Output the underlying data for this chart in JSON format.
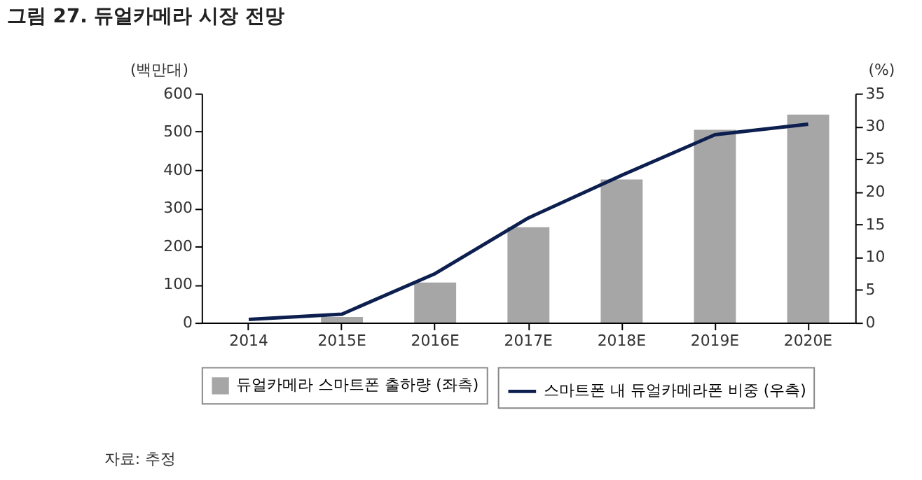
{
  "chart_data": {
    "type": "bar",
    "title": "그림 27. 듀얼카메라 시장 전망",
    "categories": [
      "2014",
      "2015E",
      "2016E",
      "2017E",
      "2018E",
      "2019E",
      "2020E"
    ],
    "ylabel": "(백만대)",
    "y2label": "(%)",
    "ylim": [
      0,
      600
    ],
    "yticks": [
      0,
      100,
      200,
      300,
      400,
      500,
      600
    ],
    "y2lim": [
      0,
      35
    ],
    "y2ticks": [
      0,
      5,
      10,
      15,
      20,
      25,
      30,
      35
    ],
    "series": [
      {
        "name": "듀얼카메라 스마트폰 출하량 (좌측)",
        "color": "#a6a6a6",
        "values": [
          null,
          15,
          105,
          250,
          375,
          505,
          545
        ]
      },
      {
        "name": "스마트폰 내 듀얼카메라폰 비중 (우측)",
        "type": "line",
        "axis": "y2",
        "color": "#0d1f4f",
        "values": [
          0.5,
          1.3,
          7.5,
          16,
          22.5,
          28.7,
          30.3
        ]
      }
    ],
    "legend": "bottom",
    "grid": false,
    "annotations": [
      "자료: 추정"
    ]
  }
}
